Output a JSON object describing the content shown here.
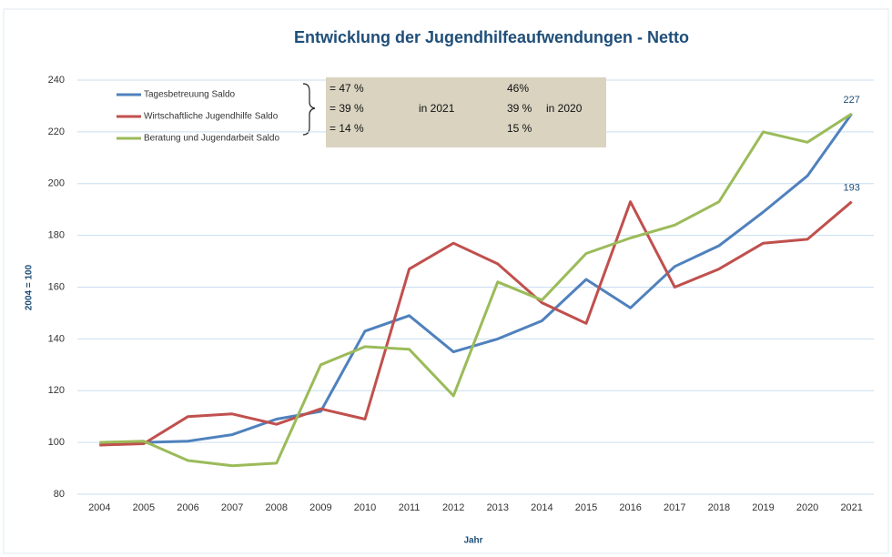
{
  "chart_data": {
    "type": "line",
    "title": "Entwicklung der Jugendhilfeaufwendungen - Netto",
    "y_label": "2004 = 100",
    "x_label": "Jahr",
    "categories": [
      "2004",
      "2005",
      "2006",
      "2007",
      "2008",
      "2009",
      "2010",
      "2011",
      "2012",
      "2013",
      "2014",
      "2015",
      "2016",
      "2017",
      "2018",
      "2019",
      "2020",
      "2021"
    ],
    "series": [
      {
        "name": "Tagesbetreuung Saldo",
        "color": "#4f81bd",
        "label_last": true,
        "values": [
          99,
          100,
          100.5,
          103,
          109,
          112,
          143,
          149,
          135,
          140,
          147,
          163,
          152,
          168,
          176,
          189,
          203,
          227
        ]
      },
      {
        "name": "Wirtschaftliche Jugendhilfe Saldo",
        "color": "#c0504d",
        "label_last": true,
        "values": [
          99,
          99.5,
          110,
          111,
          107,
          113,
          109,
          167,
          177,
          169,
          154,
          146,
          193,
          160,
          167,
          177,
          178.5,
          193
        ]
      },
      {
        "name": "Beratung und Jugendarbeit Saldo",
        "color": "#9bbb59",
        "label_last": false,
        "values": [
          100,
          100.5,
          93,
          91,
          92,
          130,
          137,
          136,
          118,
          162,
          155,
          173,
          179,
          184,
          193,
          220,
          216,
          227
        ]
      }
    ],
    "ylim": [
      80,
      240
    ],
    "yticks": [
      80,
      100,
      120,
      140,
      160,
      180,
      200,
      220,
      240
    ],
    "grid": true,
    "share_box": {
      "rows": [
        [
          "= 47 %",
          "46%"
        ],
        [
          "= 39 %",
          "39 %"
        ],
        [
          "= 14 %",
          "15 %"
        ]
      ],
      "years": [
        "in 2021",
        "in 2020"
      ]
    }
  }
}
